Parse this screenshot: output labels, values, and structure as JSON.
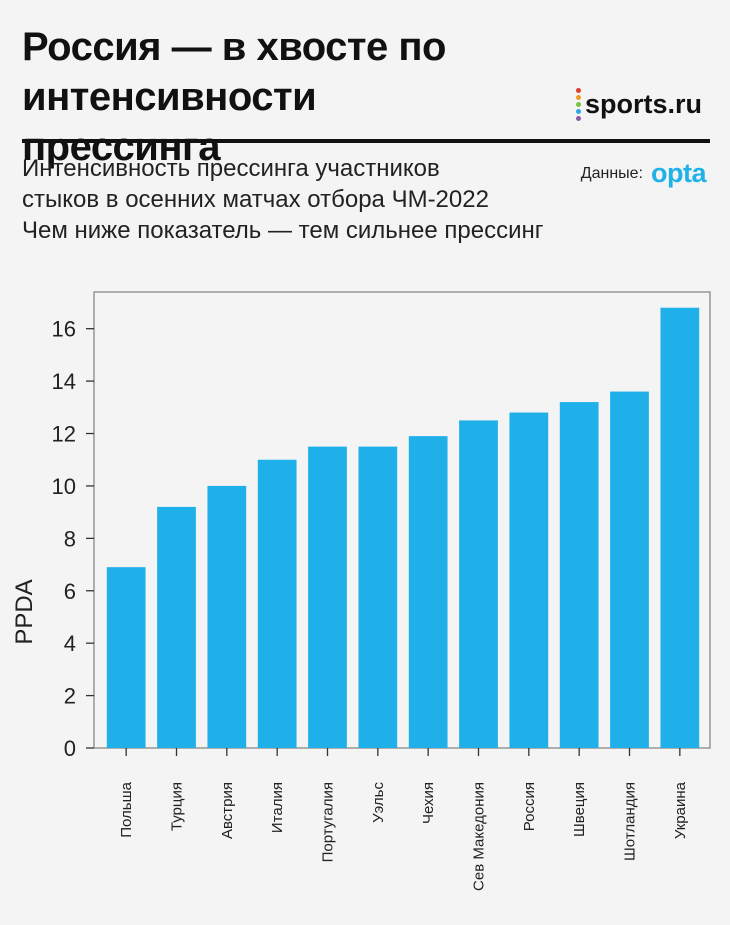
{
  "header": {
    "title_line1": "Россия —  в хвосте по интенсивности",
    "title_line2": "прессинга",
    "brand": "sports.ru",
    "subtitle_lines": [
      "Интенсивность прессинга участников",
      "стыков в осенних матчах отбора ЧМ-2022",
      "Чем ниже показатель — тем сильнее прессинг"
    ],
    "source_label": "Данные:",
    "source_name": "opta"
  },
  "colors": {
    "bar": "#1fb0ea",
    "brand_dots": [
      "#e5392b",
      "#f39a1e",
      "#7cc242",
      "#2aa7e0",
      "#8a5aa6"
    ]
  },
  "chart_data": {
    "type": "bar",
    "categories": [
      "Польша",
      "Турция",
      "Австрия",
      "Италия",
      "Португалия",
      "Уэльс",
      "Чехия",
      "Сев Македония",
      "Россия",
      "Швеция",
      "Шотландия",
      "Украина"
    ],
    "values": [
      6.9,
      9.2,
      10.0,
      11.0,
      11.5,
      11.5,
      11.9,
      12.5,
      12.8,
      13.2,
      13.6,
      16.8
    ],
    "ylabel": "PPDA",
    "xlabel": "",
    "ylim": [
      0,
      17.4
    ],
    "yticks": [
      0,
      2,
      4,
      6,
      8,
      10,
      12,
      14,
      16
    ],
    "grid": false
  }
}
